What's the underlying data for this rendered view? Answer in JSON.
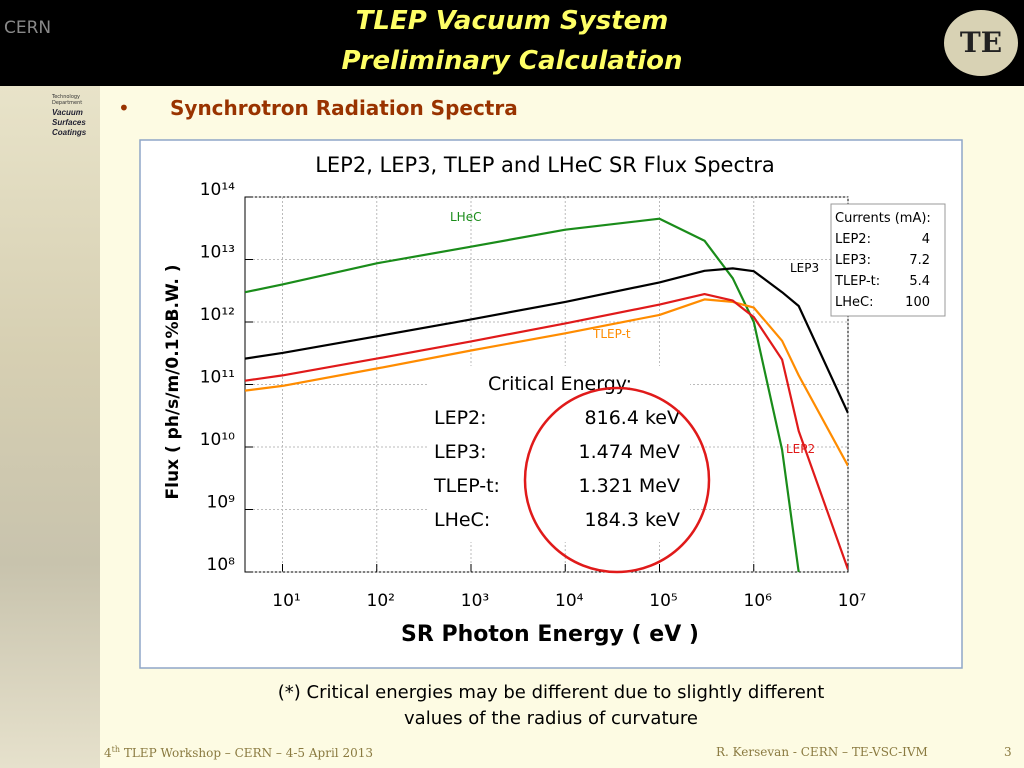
{
  "header": {
    "title": [
      "TLEP Vacuum System",
      "Preliminary Calculation"
    ],
    "left_logo": "CERN",
    "right_logo": "TE"
  },
  "sidebar": {
    "dept": "Technology Department",
    "group": [
      "Vacuum",
      "Surfaces",
      "Coatings"
    ]
  },
  "bullet": "Synchrotron Radiation Spectra",
  "chart_data": {
    "type": "line",
    "title": "LEP2, LEP3, TLEP and LHeC SR Flux Spectra",
    "x_label": "SR Photon Energy ( eV )",
    "y_label": "Flux ( ph/s/m/0.1%B.W. )",
    "x_log": true,
    "y_log": true,
    "grid": true,
    "xlim": [
      4,
      10000000
    ],
    "ylim": [
      100000000,
      100000000000000
    ],
    "xticks": [
      {
        "value": 10,
        "label": "10¹"
      },
      {
        "value": 100,
        "label": "10²"
      },
      {
        "value": 1000,
        "label": "10³"
      },
      {
        "value": 10000,
        "label": "10⁴"
      },
      {
        "value": 100000,
        "label": "10⁵"
      },
      {
        "value": 1000000,
        "label": "10⁶"
      },
      {
        "value": 10000000,
        "label": "10⁷"
      }
    ],
    "yticks": [
      {
        "value": 100000000,
        "label": "10⁸"
      },
      {
        "value": 1000000000,
        "label": "10⁹"
      },
      {
        "value": 10000000000,
        "label": "10¹⁰"
      },
      {
        "value": 100000000000,
        "label": "10¹¹"
      },
      {
        "value": 1000000000000,
        "label": "10¹²"
      },
      {
        "value": 10000000000000,
        "label": "10¹³"
      },
      {
        "value": 100000000000000,
        "label": "10¹⁴"
      }
    ],
    "x": [
      4,
      10,
      100,
      1000,
      10000,
      100000,
      300000,
      600000,
      1000000,
      2000000,
      3000000,
      10000000
    ],
    "series": [
      {
        "name": "LHeC",
        "color": "#1a8c1a",
        "values": [
          3000000000000.0,
          4000000000000.0,
          8700000000000.0,
          16000000000000.0,
          30000000000000.0,
          45000000000000.0,
          20000000000000.0,
          5000000000000.0,
          1000000000000.0,
          9000000000.0,
          100000000.0,
          null
        ]
      },
      {
        "name": "LEP3",
        "color": "#000000",
        "values": [
          260000000000.0,
          320000000000.0,
          590000000000.0,
          1100000000000.0,
          2100000000000.0,
          4300000000000.0,
          6600000000000.0,
          7200000000000.0,
          6500000000000.0,
          3000000000000.0,
          1800000000000.0,
          35000000000.0
        ]
      },
      {
        "name": "TLEP-t",
        "color": "#ff8c00",
        "values": [
          80000000000.0,
          95000000000.0,
          180000000000.0,
          350000000000.0,
          660000000000.0,
          1300000000000.0,
          2300000000000.0,
          2100000000000.0,
          1700000000000.0,
          500000000000.0,
          140000000000.0,
          5000000000.0
        ]
      },
      {
        "name": "LEP2",
        "color": "#e01a1a",
        "values": [
          115000000000.0,
          140000000000.0,
          260000000000.0,
          490000000000.0,
          950000000000.0,
          1900000000000.0,
          2800000000000.0,
          2200000000000.0,
          1200000000000.0,
          250000000000.0,
          18000000000.0,
          110000000.0
        ]
      }
    ],
    "currents": {
      "title": "Currents (mA):",
      "rows": [
        [
          "LEP2:",
          "4"
        ],
        [
          "LEP3:",
          "7.2"
        ],
        [
          "TLEP-t:",
          "5.4"
        ],
        [
          "LHeC:",
          "100"
        ]
      ]
    },
    "critical": {
      "title": "Critical Energy:",
      "rows": [
        [
          "LEP2:",
          "816.4 keV"
        ],
        [
          "LEP3:",
          "1.474 MeV"
        ],
        [
          "TLEP-t:",
          "1.321 MeV"
        ],
        [
          "LHeC:",
          "184.3 keV"
        ]
      ]
    }
  },
  "note": [
    "(*) Critical energies may be different due to slightly different",
    "values of the radius of curvature"
  ],
  "footer": {
    "left": [
      "4",
      "th",
      " TLEP Workshop – CERN – 4-5 April 2013"
    ],
    "right": "R. Kersevan  - CERN – TE-VSC-IVM",
    "page": "3"
  }
}
